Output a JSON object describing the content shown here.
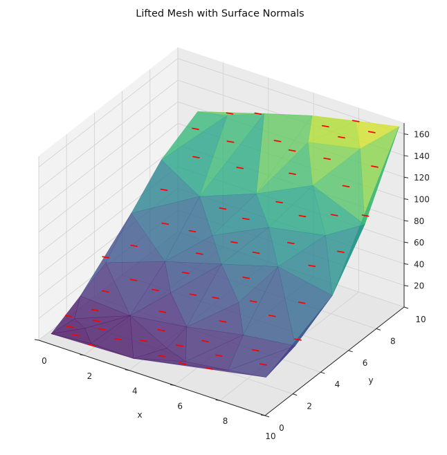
{
  "chart_data": {
    "type": "surface3d",
    "title": "Lifted Mesh with Surface Normals",
    "xlabel": "x",
    "ylabel": "y",
    "zlabel": "",
    "xlim": [
      0,
      10
    ],
    "ylim": [
      0,
      10
    ],
    "zlim": [
      0,
      170
    ],
    "x_ticks": [
      0,
      2,
      4,
      6,
      8,
      10
    ],
    "y_ticks": [
      0,
      2,
      4,
      6,
      8,
      10
    ],
    "z_ticks": [
      20,
      40,
      60,
      80,
      100,
      120,
      140,
      160
    ],
    "grid": true,
    "colormap": "viridis",
    "surface_vertices": [
      {
        "x": 0.3,
        "y": 0.4,
        "z": 4
      },
      {
        "x": 0.6,
        "y": 1.6,
        "z": 8
      },
      {
        "x": 2.0,
        "y": 0.5,
        "z": 6
      },
      {
        "x": 4.0,
        "y": 0.3,
        "z": 8
      },
      {
        "x": 6.0,
        "y": 0.8,
        "z": 14
      },
      {
        "x": 8.0,
        "y": 0.6,
        "z": 22
      },
      {
        "x": 9.8,
        "y": 0.4,
        "z": 30
      },
      {
        "x": 9.8,
        "y": 2.5,
        "z": 38
      },
      {
        "x": 9.9,
        "y": 5.0,
        "z": 60
      },
      {
        "x": 9.8,
        "y": 7.5,
        "z": 100
      },
      {
        "x": 9.9,
        "y": 9.8,
        "z": 168
      },
      {
        "x": 8.0,
        "y": 9.8,
        "z": 160
      },
      {
        "x": 6.0,
        "y": 9.9,
        "z": 150
      },
      {
        "x": 4.0,
        "y": 9.7,
        "z": 140
      },
      {
        "x": 2.5,
        "y": 9.5,
        "z": 130
      },
      {
        "x": 1.0,
        "y": 9.8,
        "z": 120
      },
      {
        "x": 0.5,
        "y": 8.0,
        "z": 90
      },
      {
        "x": 0.4,
        "y": 6.0,
        "z": 60
      },
      {
        "x": 0.5,
        "y": 4.0,
        "z": 35
      },
      {
        "x": 0.3,
        "y": 2.5,
        "z": 18
      },
      {
        "x": 2.5,
        "y": 2.5,
        "z": 15
      },
      {
        "x": 5.0,
        "y": 2.5,
        "z": 22
      },
      {
        "x": 7.5,
        "y": 2.5,
        "z": 32
      },
      {
        "x": 2.5,
        "y": 5.0,
        "z": 40
      },
      {
        "x": 5.0,
        "y": 5.0,
        "z": 55
      },
      {
        "x": 7.5,
        "y": 5.0,
        "z": 70
      },
      {
        "x": 2.5,
        "y": 7.5,
        "z": 75
      },
      {
        "x": 5.0,
        "y": 7.5,
        "z": 95
      },
      {
        "x": 7.5,
        "y": 7.5,
        "z": 120
      },
      {
        "x": 6.5,
        "y": 8.8,
        "z": 140
      },
      {
        "x": 3.5,
        "y": 3.8,
        "z": 30
      },
      {
        "x": 6.5,
        "y": 3.8,
        "z": 42
      },
      {
        "x": 3.8,
        "y": 6.3,
        "z": 60
      },
      {
        "x": 6.3,
        "y": 6.3,
        "z": 85
      },
      {
        "x": 8.8,
        "y": 6.3,
        "z": 95
      },
      {
        "x": 8.8,
        "y": 8.8,
        "z": 150
      },
      {
        "x": 1.3,
        "y": 1.2,
        "z": 8
      },
      {
        "x": 4.8,
        "y": 1.4,
        "z": 12
      }
    ],
    "normal_color": "#ff0000"
  }
}
